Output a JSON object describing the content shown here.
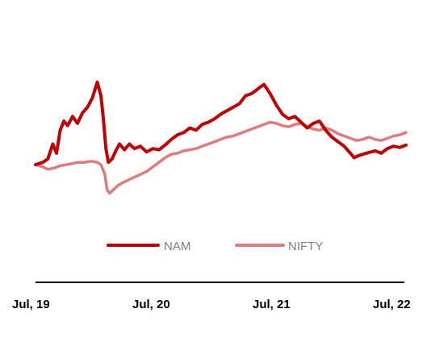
{
  "chart_data": {
    "type": "line",
    "title": "",
    "xlabel": "",
    "ylabel": "",
    "x_tick_labels": [
      "Jul, 19",
      "Jul, 20",
      "Jul, 21",
      "Jul, 22"
    ],
    "x_range": [
      2019.5,
      2022.5
    ],
    "y_range": [
      0.55,
      2.0
    ],
    "y_axis_visible": false,
    "grid": false,
    "legend_position": "bottom",
    "series": [
      {
        "name": "NAM",
        "color": "#c00000",
        "points": [
          [
            2019.5,
            1.0
          ],
          [
            2019.56,
            1.02
          ],
          [
            2019.6,
            1.05
          ],
          [
            2019.64,
            1.18
          ],
          [
            2019.67,
            1.1
          ],
          [
            2019.7,
            1.3
          ],
          [
            2019.73,
            1.38
          ],
          [
            2019.76,
            1.34
          ],
          [
            2019.8,
            1.42
          ],
          [
            2019.84,
            1.36
          ],
          [
            2019.88,
            1.45
          ],
          [
            2019.92,
            1.5
          ],
          [
            2019.96,
            1.58
          ],
          [
            2020.0,
            1.72
          ],
          [
            2020.03,
            1.6
          ],
          [
            2020.05,
            1.4
          ],
          [
            2020.07,
            1.14
          ],
          [
            2020.09,
            1.02
          ],
          [
            2020.12,
            1.05
          ],
          [
            2020.15,
            1.12
          ],
          [
            2020.18,
            1.18
          ],
          [
            2020.22,
            1.13
          ],
          [
            2020.26,
            1.18
          ],
          [
            2020.3,
            1.14
          ],
          [
            2020.35,
            1.16
          ],
          [
            2020.4,
            1.11
          ],
          [
            2020.45,
            1.14
          ],
          [
            2020.5,
            1.13
          ],
          [
            2020.55,
            1.17
          ],
          [
            2020.6,
            1.22
          ],
          [
            2020.65,
            1.26
          ],
          [
            2020.7,
            1.28
          ],
          [
            2020.75,
            1.32
          ],
          [
            2020.8,
            1.3
          ],
          [
            2020.85,
            1.35
          ],
          [
            2020.9,
            1.37
          ],
          [
            2020.95,
            1.4
          ],
          [
            2021.0,
            1.44
          ],
          [
            2021.05,
            1.47
          ],
          [
            2021.1,
            1.5
          ],
          [
            2021.15,
            1.53
          ],
          [
            2021.2,
            1.6
          ],
          [
            2021.25,
            1.62
          ],
          [
            2021.3,
            1.66
          ],
          [
            2021.35,
            1.7
          ],
          [
            2021.4,
            1.62
          ],
          [
            2021.45,
            1.52
          ],
          [
            2021.5,
            1.44
          ],
          [
            2021.55,
            1.4
          ],
          [
            2021.6,
            1.42
          ],
          [
            2021.65,
            1.37
          ],
          [
            2021.7,
            1.32
          ],
          [
            2021.75,
            1.36
          ],
          [
            2021.8,
            1.38
          ],
          [
            2021.85,
            1.3
          ],
          [
            2021.9,
            1.24
          ],
          [
            2021.95,
            1.2
          ],
          [
            2022.0,
            1.16
          ],
          [
            2022.05,
            1.1
          ],
          [
            2022.08,
            1.06
          ],
          [
            2022.12,
            1.08
          ],
          [
            2022.18,
            1.1
          ],
          [
            2022.25,
            1.12
          ],
          [
            2022.3,
            1.1
          ],
          [
            2022.35,
            1.14
          ],
          [
            2022.4,
            1.16
          ],
          [
            2022.45,
            1.15
          ],
          [
            2022.5,
            1.17
          ]
        ]
      },
      {
        "name": "NIFTY",
        "color": "#e07b7b",
        "points": [
          [
            2019.5,
            1.0
          ],
          [
            2019.56,
            0.98
          ],
          [
            2019.6,
            0.96
          ],
          [
            2019.65,
            0.97
          ],
          [
            2019.7,
            0.99
          ],
          [
            2019.75,
            1.0
          ],
          [
            2019.8,
            1.01
          ],
          [
            2019.85,
            1.02
          ],
          [
            2019.9,
            1.02
          ],
          [
            2019.95,
            1.03
          ],
          [
            2020.0,
            1.02
          ],
          [
            2020.03,
            1.0
          ],
          [
            2020.06,
            0.92
          ],
          [
            2020.08,
            0.78
          ],
          [
            2020.1,
            0.75
          ],
          [
            2020.13,
            0.78
          ],
          [
            2020.17,
            0.82
          ],
          [
            2020.22,
            0.85
          ],
          [
            2020.28,
            0.88
          ],
          [
            2020.34,
            0.91
          ],
          [
            2020.4,
            0.94
          ],
          [
            2020.45,
            0.98
          ],
          [
            2020.5,
            1.02
          ],
          [
            2020.55,
            1.06
          ],
          [
            2020.6,
            1.09
          ],
          [
            2020.65,
            1.1
          ],
          [
            2020.7,
            1.12
          ],
          [
            2020.75,
            1.13
          ],
          [
            2020.8,
            1.14
          ],
          [
            2020.85,
            1.16
          ],
          [
            2020.9,
            1.18
          ],
          [
            2020.95,
            1.2
          ],
          [
            2021.0,
            1.22
          ],
          [
            2021.05,
            1.24
          ],
          [
            2021.1,
            1.25
          ],
          [
            2021.15,
            1.27
          ],
          [
            2021.2,
            1.29
          ],
          [
            2021.25,
            1.31
          ],
          [
            2021.3,
            1.33
          ],
          [
            2021.35,
            1.35
          ],
          [
            2021.4,
            1.37
          ],
          [
            2021.45,
            1.36
          ],
          [
            2021.5,
            1.34
          ],
          [
            2021.55,
            1.33
          ],
          [
            2021.6,
            1.35
          ],
          [
            2021.65,
            1.36
          ],
          [
            2021.7,
            1.33
          ],
          [
            2021.75,
            1.31
          ],
          [
            2021.8,
            1.3
          ],
          [
            2021.85,
            1.32
          ],
          [
            2021.9,
            1.3
          ],
          [
            2021.95,
            1.27
          ],
          [
            2022.0,
            1.25
          ],
          [
            2022.05,
            1.23
          ],
          [
            2022.1,
            1.21
          ],
          [
            2022.15,
            1.22
          ],
          [
            2022.2,
            1.24
          ],
          [
            2022.25,
            1.22
          ],
          [
            2022.3,
            1.21
          ],
          [
            2022.35,
            1.23
          ],
          [
            2022.4,
            1.25
          ],
          [
            2022.45,
            1.26
          ],
          [
            2022.5,
            1.28
          ]
        ]
      }
    ]
  }
}
